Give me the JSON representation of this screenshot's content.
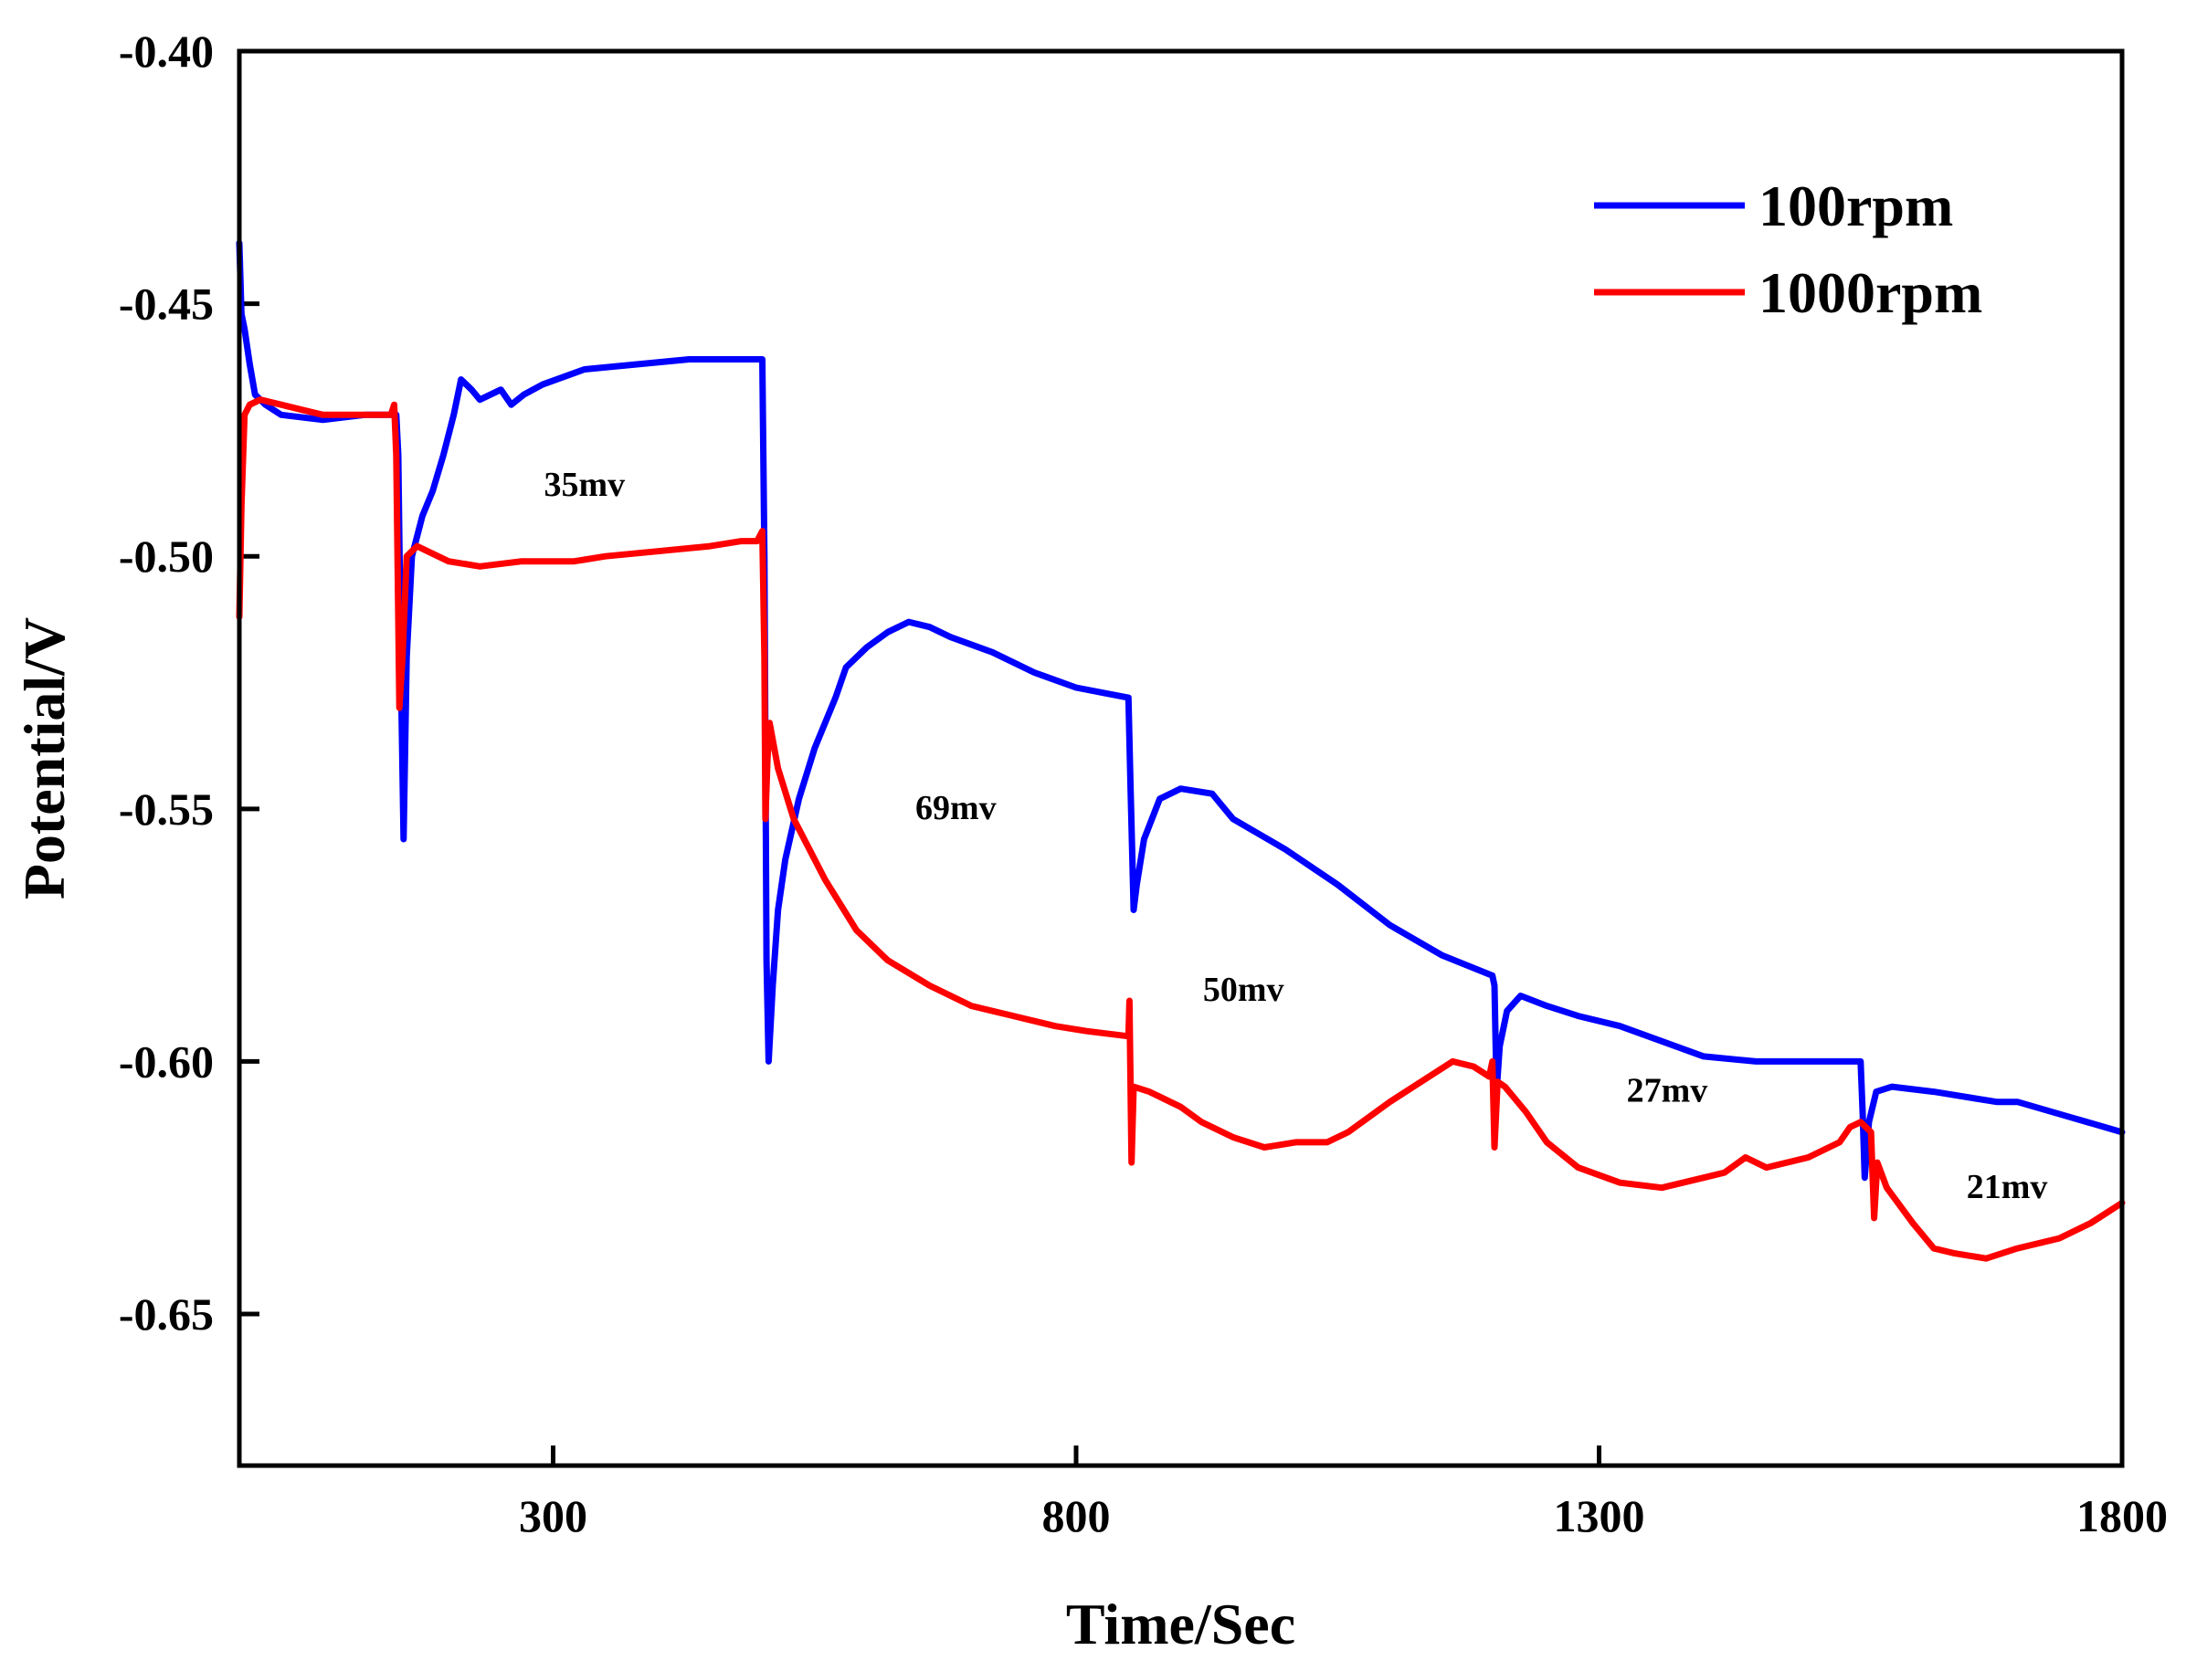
{
  "chart_data": {
    "type": "line",
    "title": "",
    "xlabel": "Time/Sec",
    "ylabel": "Potential/V",
    "xlim": [
      0,
      1800
    ],
    "ylim": [
      -0.68,
      -0.4
    ],
    "grid": false,
    "legend_position": "top-right",
    "x_ticks": [
      300,
      800,
      1300,
      1800
    ],
    "x_tick_labels": [
      "300",
      "800",
      "1300",
      "1800"
    ],
    "y_ticks": [
      -0.4,
      -0.45,
      -0.5,
      -0.55,
      -0.6,
      -0.65
    ],
    "y_tick_labels": [
      "-0.40",
      "-0.45",
      "-0.50",
      "-0.55",
      "-0.60",
      "-0.65"
    ],
    "series": [
      {
        "name": "100rpm",
        "color": "#0000ff",
        "points": [
          [
            0,
            -0.438
          ],
          [
            2,
            -0.452
          ],
          [
            5,
            -0.455
          ],
          [
            10,
            -0.462
          ],
          [
            15,
            -0.468
          ],
          [
            25,
            -0.47
          ],
          [
            40,
            -0.472
          ],
          [
            80,
            -0.473
          ],
          [
            120,
            -0.472
          ],
          [
            150,
            -0.472
          ],
          [
            152,
            -0.48
          ],
          [
            155,
            -0.53
          ],
          [
            157,
            -0.556
          ],
          [
            160,
            -0.52
          ],
          [
            165,
            -0.5
          ],
          [
            175,
            -0.492
          ],
          [
            185,
            -0.487
          ],
          [
            195,
            -0.48
          ],
          [
            205,
            -0.472
          ],
          [
            212,
            -0.465
          ],
          [
            222,
            -0.467
          ],
          [
            230,
            -0.469
          ],
          [
            240,
            -0.468
          ],
          [
            250,
            -0.467
          ],
          [
            260,
            -0.47
          ],
          [
            272,
            -0.468
          ],
          [
            290,
            -0.466
          ],
          [
            330,
            -0.463
          ],
          [
            380,
            -0.462
          ],
          [
            430,
            -0.461
          ],
          [
            470,
            -0.461
          ],
          [
            500,
            -0.461
          ],
          [
            502,
            -0.5
          ],
          [
            504,
            -0.58
          ],
          [
            506,
            -0.6
          ],
          [
            510,
            -0.585
          ],
          [
            515,
            -0.57
          ],
          [
            522,
            -0.56
          ],
          [
            535,
            -0.548
          ],
          [
            550,
            -0.538
          ],
          [
            570,
            -0.528
          ],
          [
            580,
            -0.522
          ],
          [
            600,
            -0.518
          ],
          [
            620,
            -0.515
          ],
          [
            640,
            -0.513
          ],
          [
            660,
            -0.514
          ],
          [
            680,
            -0.516
          ],
          [
            720,
            -0.519
          ],
          [
            760,
            -0.523
          ],
          [
            800,
            -0.526
          ],
          [
            850,
            -0.528
          ],
          [
            852,
            -0.545
          ],
          [
            855,
            -0.57
          ],
          [
            858,
            -0.565
          ],
          [
            865,
            -0.556
          ],
          [
            880,
            -0.548
          ],
          [
            900,
            -0.546
          ],
          [
            930,
            -0.547
          ],
          [
            950,
            -0.552
          ],
          [
            1000,
            -0.558
          ],
          [
            1050,
            -0.565
          ],
          [
            1100,
            -0.573
          ],
          [
            1150,
            -0.579
          ],
          [
            1198,
            -0.583
          ],
          [
            1200,
            -0.585
          ],
          [
            1202,
            -0.606
          ],
          [
            1205,
            -0.597
          ],
          [
            1212,
            -0.59
          ],
          [
            1225,
            -0.587
          ],
          [
            1250,
            -0.589
          ],
          [
            1280,
            -0.591
          ],
          [
            1320,
            -0.593
          ],
          [
            1360,
            -0.596
          ],
          [
            1400,
            -0.599
          ],
          [
            1450,
            -0.6
          ],
          [
            1500,
            -0.6
          ],
          [
            1550,
            -0.6
          ],
          [
            1552,
            -0.61
          ],
          [
            1554,
            -0.623
          ],
          [
            1558,
            -0.612
          ],
          [
            1565,
            -0.606
          ],
          [
            1580,
            -0.605
          ],
          [
            1620,
            -0.606
          ],
          [
            1680,
            -0.608
          ],
          [
            1700,
            -0.608
          ],
          [
            1750,
            -0.611
          ],
          [
            1800,
            -0.614
          ]
        ]
      },
      {
        "name": "1000rpm",
        "color": "#ff0000",
        "points": [
          [
            0,
            -0.512
          ],
          [
            2,
            -0.49
          ],
          [
            5,
            -0.472
          ],
          [
            10,
            -0.47
          ],
          [
            20,
            -0.469
          ],
          [
            40,
            -0.47
          ],
          [
            60,
            -0.471
          ],
          [
            80,
            -0.472
          ],
          [
            100,
            -0.472
          ],
          [
            120,
            -0.472
          ],
          [
            145,
            -0.472
          ],
          [
            148,
            -0.47
          ],
          [
            150,
            -0.48
          ],
          [
            153,
            -0.53
          ],
          [
            156,
            -0.52
          ],
          [
            160,
            -0.5
          ],
          [
            170,
            -0.498
          ],
          [
            180,
            -0.499
          ],
          [
            200,
            -0.501
          ],
          [
            230,
            -0.502
          ],
          [
            270,
            -0.501
          ],
          [
            320,
            -0.501
          ],
          [
            350,
            -0.5
          ],
          [
            400,
            -0.499
          ],
          [
            450,
            -0.498
          ],
          [
            480,
            -0.497
          ],
          [
            495,
            -0.497
          ],
          [
            500,
            -0.495
          ],
          [
            502,
            -0.52
          ],
          [
            503,
            -0.552
          ],
          [
            505,
            -0.54
          ],
          [
            507,
            -0.533
          ],
          [
            515,
            -0.542
          ],
          [
            530,
            -0.552
          ],
          [
            560,
            -0.564
          ],
          [
            590,
            -0.574
          ],
          [
            620,
            -0.58
          ],
          [
            660,
            -0.585
          ],
          [
            700,
            -0.589
          ],
          [
            740,
            -0.591
          ],
          [
            780,
            -0.593
          ],
          [
            810,
            -0.594
          ],
          [
            850,
            -0.595
          ],
          [
            851,
            -0.588
          ],
          [
            853,
            -0.62
          ],
          [
            855,
            -0.605
          ],
          [
            870,
            -0.606
          ],
          [
            900,
            -0.609
          ],
          [
            920,
            -0.612
          ],
          [
            950,
            -0.615
          ],
          [
            980,
            -0.617
          ],
          [
            1010,
            -0.616
          ],
          [
            1040,
            -0.616
          ],
          [
            1060,
            -0.614
          ],
          [
            1080,
            -0.611
          ],
          [
            1100,
            -0.608
          ],
          [
            1130,
            -0.604
          ],
          [
            1160,
            -0.6
          ],
          [
            1180,
            -0.601
          ],
          [
            1195,
            -0.603
          ],
          [
            1198,
            -0.6
          ],
          [
            1200,
            -0.617
          ],
          [
            1203,
            -0.604
          ],
          [
            1210,
            -0.605
          ],
          [
            1230,
            -0.61
          ],
          [
            1250,
            -0.616
          ],
          [
            1280,
            -0.621
          ],
          [
            1320,
            -0.624
          ],
          [
            1360,
            -0.625
          ],
          [
            1400,
            -0.623
          ],
          [
            1420,
            -0.622
          ],
          [
            1440,
            -0.619
          ],
          [
            1460,
            -0.621
          ],
          [
            1500,
            -0.619
          ],
          [
            1530,
            -0.616
          ],
          [
            1540,
            -0.613
          ],
          [
            1550,
            -0.612
          ],
          [
            1560,
            -0.614
          ],
          [
            1563,
            -0.631
          ],
          [
            1566,
            -0.62
          ],
          [
            1575,
            -0.625
          ],
          [
            1600,
            -0.632
          ],
          [
            1620,
            -0.637
          ],
          [
            1640,
            -0.638
          ],
          [
            1670,
            -0.639
          ],
          [
            1700,
            -0.637
          ],
          [
            1740,
            -0.635
          ],
          [
            1770,
            -0.632
          ],
          [
            1800,
            -0.628
          ]
        ]
      }
    ],
    "annotations": [
      {
        "text": "35mv",
        "x": 330,
        "y": -0.488
      },
      {
        "text": "69mv",
        "x": 685,
        "y": -0.552
      },
      {
        "text": "50mv",
        "x": 960,
        "y": -0.588
      },
      {
        "text": "27mv",
        "x": 1365,
        "y": -0.608
      },
      {
        "text": "21mv",
        "x": 1690,
        "y": -0.627
      }
    ]
  }
}
